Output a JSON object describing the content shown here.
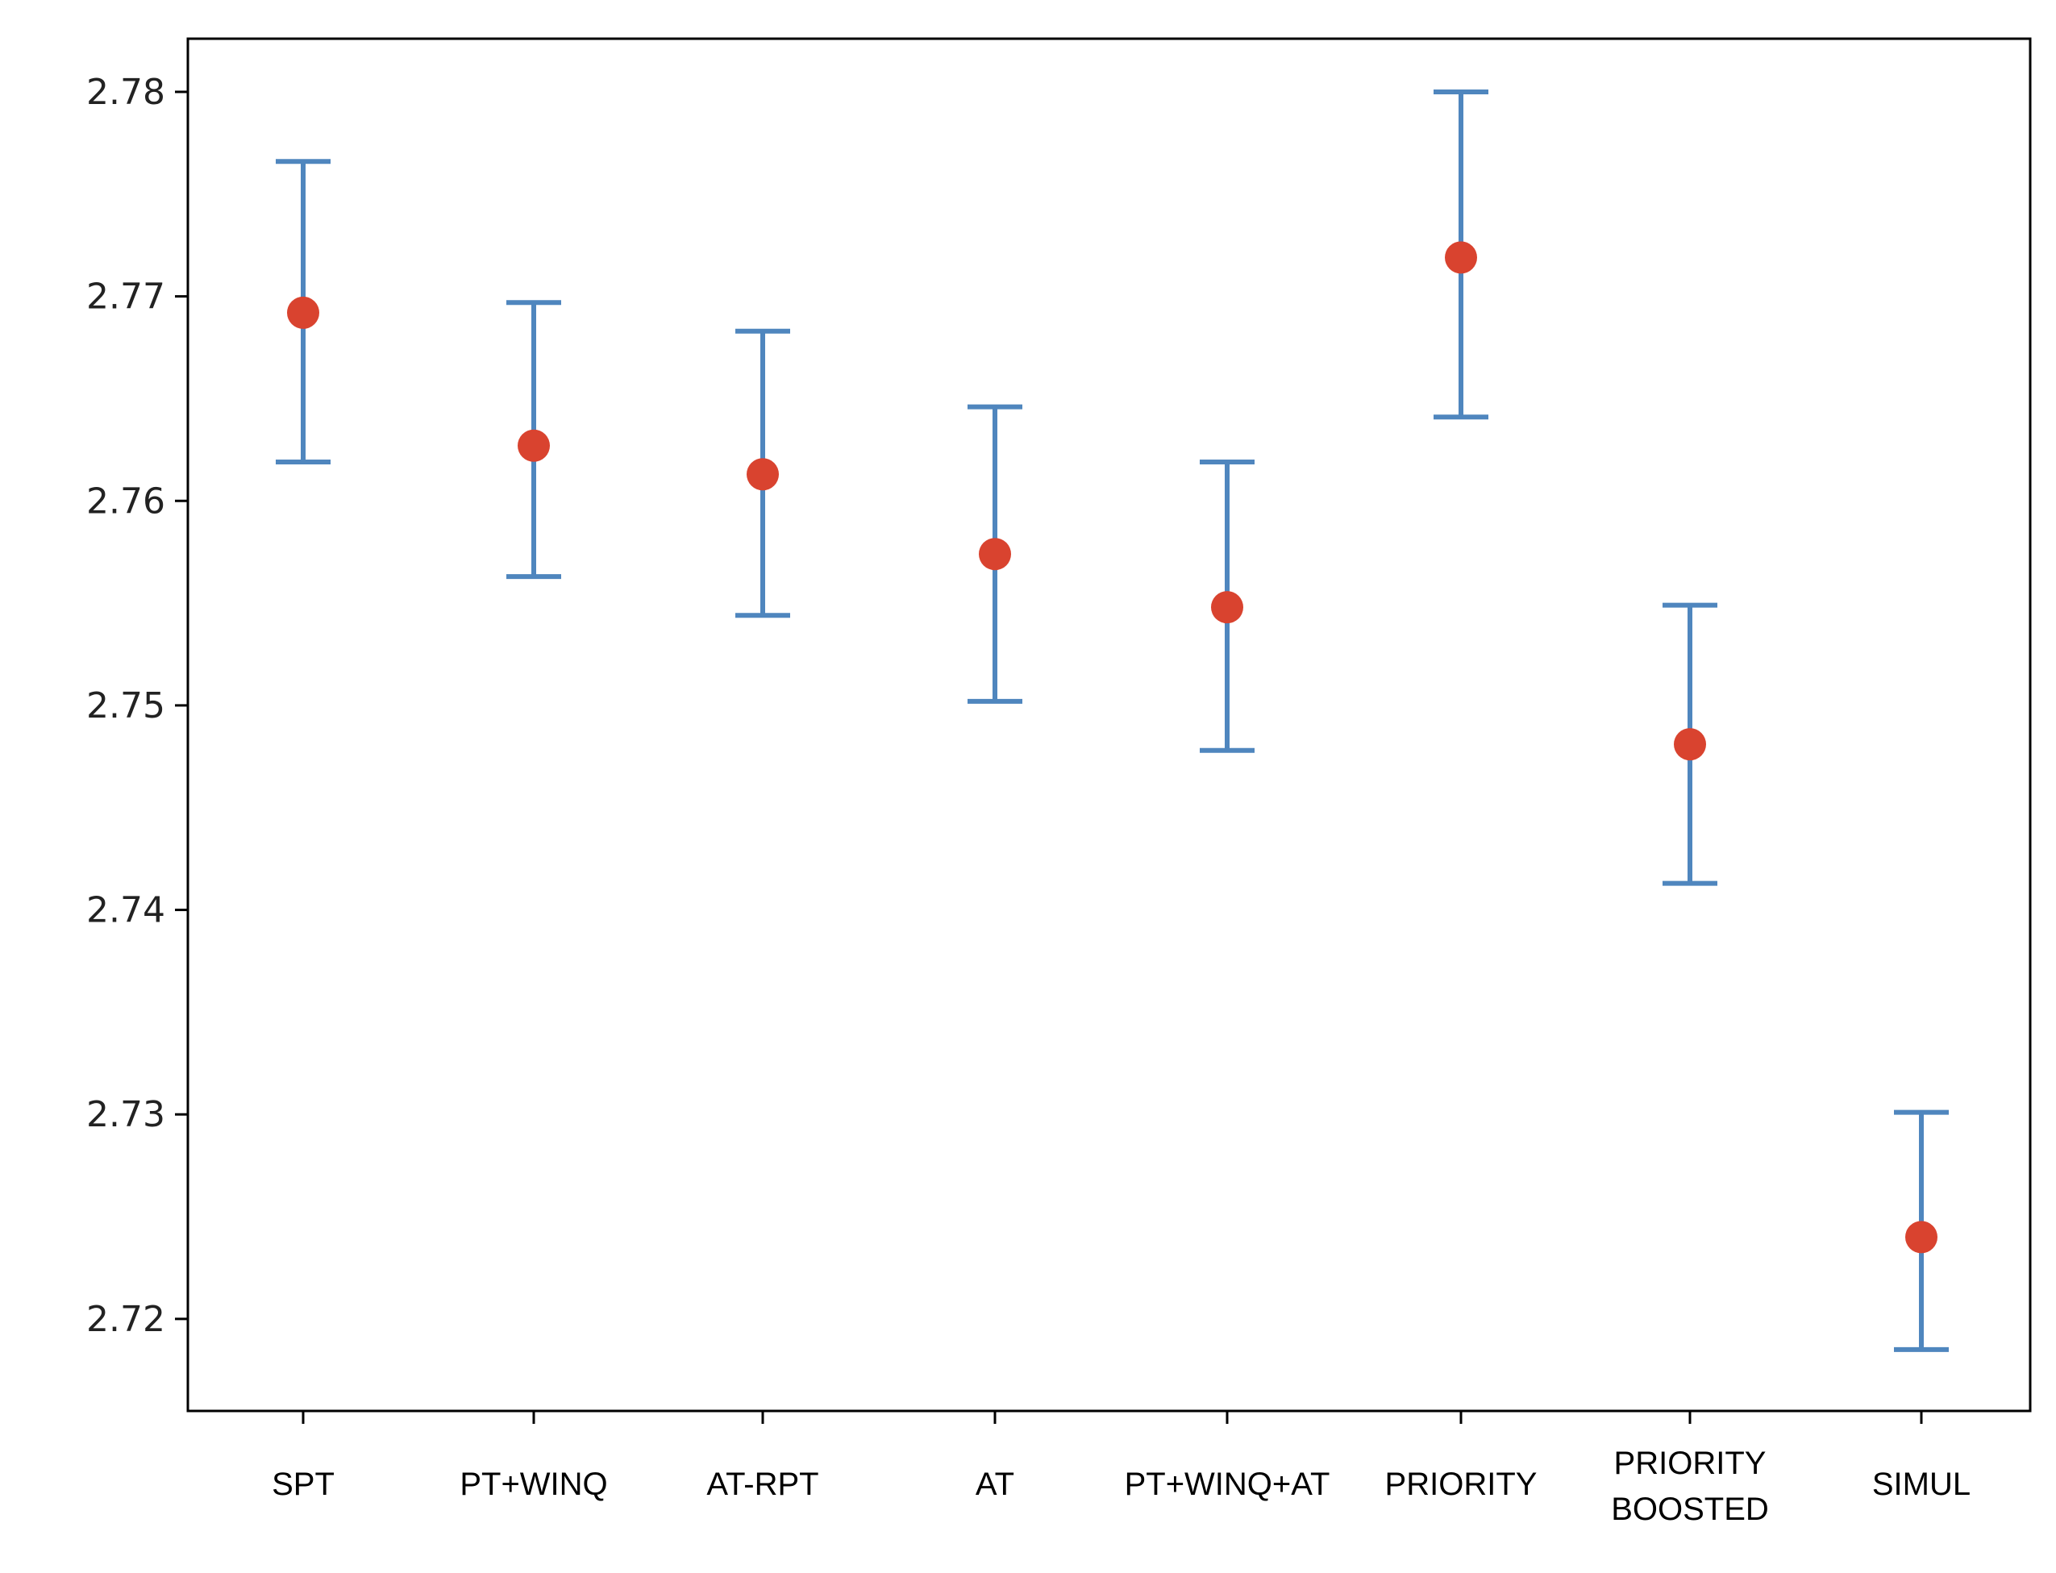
{
  "chart_data": {
    "type": "scatter",
    "title": "",
    "xlabel": "",
    "ylabel": "",
    "categories": [
      [
        "SPT"
      ],
      [
        "PT+WINQ"
      ],
      [
        "AT-RPT"
      ],
      [
        "AT"
      ],
      [
        "PT+WINQ+AT"
      ],
      [
        "PRIORITY"
      ],
      [
        "PRIORITY",
        "BOOSTED"
      ],
      [
        "SIMUL"
      ]
    ],
    "means": [
      2.7692,
      2.7627,
      2.7613,
      2.7574,
      2.7548,
      2.7719,
      2.7481,
      2.724
    ],
    "lower": [
      2.7619,
      2.7563,
      2.7544,
      2.7502,
      2.7478,
      2.7641,
      2.7413,
      2.7185
    ],
    "upper": [
      2.7766,
      2.7697,
      2.7683,
      2.7646,
      2.7619,
      2.78,
      2.7549,
      2.7301
    ],
    "ylim": [
      2.7155,
      2.7826
    ],
    "yticks": [
      2.72,
      2.73,
      2.74,
      2.75,
      2.76,
      2.77,
      2.78
    ],
    "ytick_labels": [
      "2.72",
      "2.73",
      "2.74",
      "2.75",
      "2.76",
      "2.77",
      "2.78"
    ],
    "grid": false,
    "legend": "none",
    "colors": {
      "marker": "#d9432f",
      "errorbar": "#4f86be",
      "axis": "#000000"
    }
  }
}
